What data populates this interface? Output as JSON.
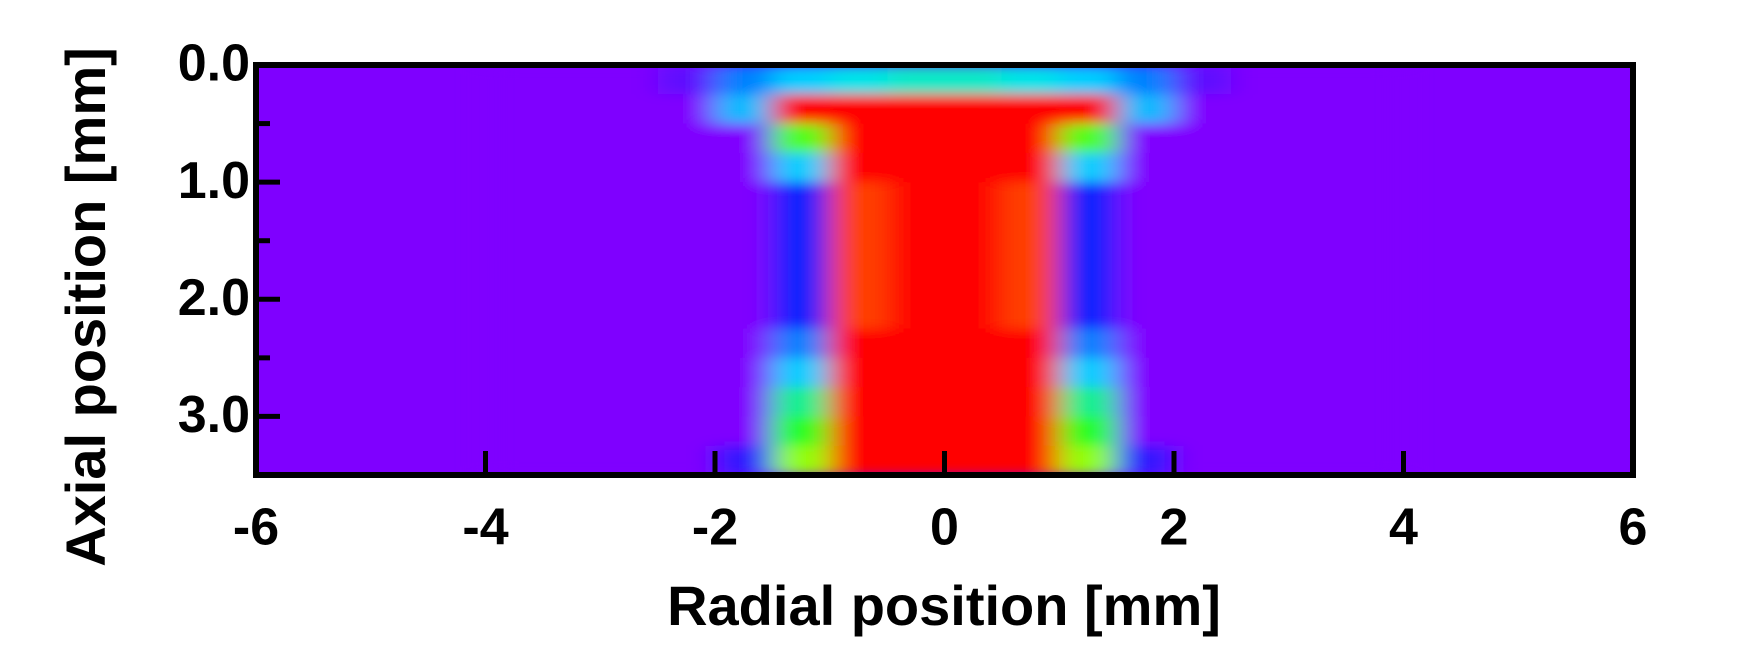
{
  "chart_data": {
    "type": "heatmap",
    "xlabel": "Radial position [mm]",
    "ylabel": "Axial position [mm]",
    "x": [
      -3.75,
      -3.25,
      -2.75,
      -2.25,
      -1.75,
      -1.25,
      -0.75,
      -0.25,
      0.25,
      0.75,
      1.25,
      1.75,
      2.25,
      2.75,
      3.25,
      3.75
    ],
    "y": [
      0.125,
      0.375,
      0.625,
      0.875,
      1.125,
      1.375,
      1.625,
      1.875,
      2.125,
      2.375,
      2.625,
      2.875,
      3.125,
      3.375
    ],
    "z": [
      [
        0,
        0,
        0,
        0.05,
        0.3,
        0.38,
        0.42,
        0.45,
        0.45,
        0.42,
        0.38,
        0.3,
        0.05,
        0,
        0,
        0
      ],
      [
        0,
        0,
        0,
        0,
        0.36,
        1,
        1,
        1,
        1,
        1,
        1,
        0.36,
        0,
        0,
        0,
        0
      ],
      [
        0,
        0,
        0,
        0,
        0,
        0.64,
        1,
        1,
        1,
        1,
        0.64,
        0,
        0,
        0,
        0,
        0
      ],
      [
        0,
        0,
        0,
        0,
        0,
        0.38,
        1,
        1,
        1,
        1,
        0.38,
        0,
        0,
        0,
        0,
        0
      ],
      [
        0,
        0,
        0,
        0,
        0,
        0.2,
        0.95,
        1,
        1,
        0.95,
        0.2,
        0,
        0,
        0,
        0,
        0
      ],
      [
        0,
        0,
        0,
        0,
        0,
        0.2,
        0.95,
        1,
        1,
        0.95,
        0.2,
        0,
        0,
        0,
        0,
        0
      ],
      [
        0,
        0,
        0,
        0,
        0,
        0.2,
        0.95,
        1,
        1,
        0.95,
        0.2,
        0,
        0,
        0,
        0,
        0
      ],
      [
        0,
        0,
        0,
        0,
        0,
        0.2,
        0.95,
        1,
        1,
        0.95,
        0.2,
        0,
        0,
        0,
        0,
        0
      ],
      [
        0,
        0,
        0,
        0,
        0,
        0.2,
        0.95,
        1,
        1,
        0.95,
        0.2,
        0,
        0,
        0,
        0,
        0
      ],
      [
        0,
        0,
        0,
        0,
        0,
        0.3,
        1,
        1,
        1,
        1,
        0.3,
        0,
        0,
        0,
        0,
        0
      ],
      [
        0,
        0,
        0,
        0,
        0,
        0.38,
        1,
        1,
        1,
        1,
        0.38,
        0,
        0,
        0,
        0,
        0
      ],
      [
        0,
        0,
        0,
        0,
        0,
        0.5,
        1,
        1,
        1,
        1,
        0.5,
        0,
        0,
        0,
        0,
        0
      ],
      [
        0,
        0,
        0,
        0,
        0,
        0.6,
        1,
        1,
        1,
        1,
        0.6,
        0,
        0,
        0,
        0,
        0
      ],
      [
        0,
        0,
        0,
        0,
        0.12,
        0.7,
        1,
        1,
        1,
        1,
        0.7,
        0.12,
        0,
        0,
        0,
        0
      ]
    ],
    "colormap": [
      "#7f00ff",
      "#0020ff",
      "#00e0ff",
      "#20ff20",
      "#ffff00",
      "#ff0000"
    ],
    "xlim": [
      -6,
      6
    ],
    "ylim": [
      3.5,
      0
    ],
    "xticks": [
      -6,
      -4,
      -2,
      0,
      2,
      4,
      6
    ],
    "yticks": [
      {
        "value": 0,
        "label": "0.0"
      },
      {
        "value": 1,
        "label": "1.0"
      },
      {
        "value": 2,
        "label": "2.0"
      },
      {
        "value": 3,
        "label": "3.0"
      }
    ],
    "yminorticks": [
      0.5,
      1.5,
      2.5
    ]
  }
}
